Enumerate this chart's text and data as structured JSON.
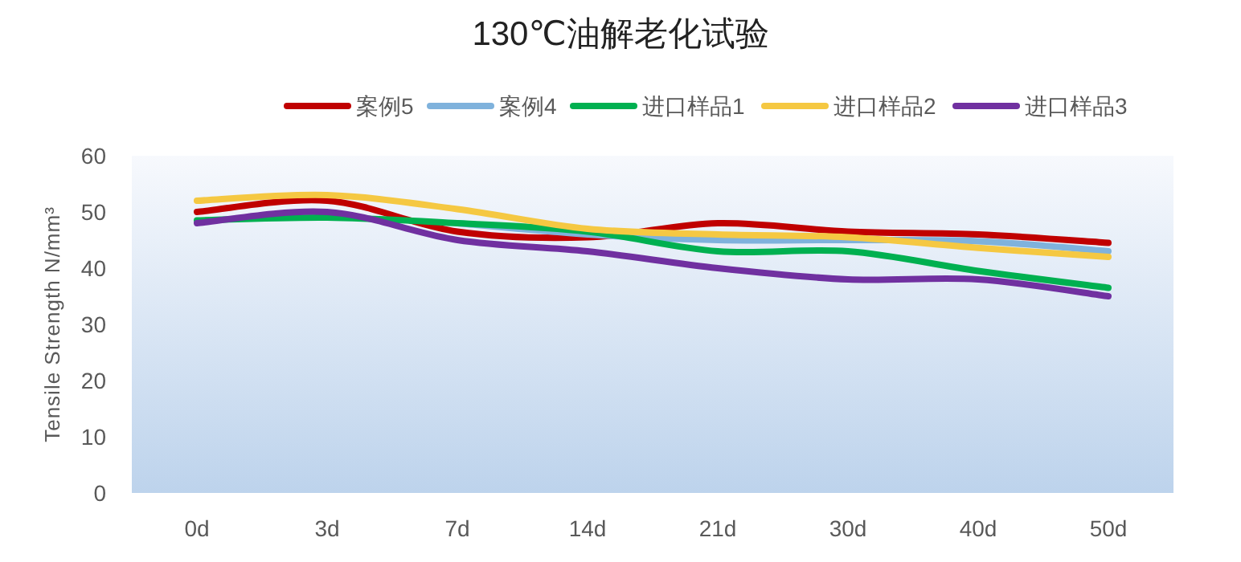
{
  "chart_data": {
    "type": "line",
    "title": "130℃油解老化试验",
    "ylabel": "Tensile Strength N/mm³",
    "categories": [
      "0d",
      "3d",
      "7d",
      "14d",
      "21d",
      "30d",
      "40d",
      "50d"
    ],
    "series": [
      {
        "name": "案例5",
        "color": "#c00000",
        "values": [
          50,
          52,
          46.5,
          45.5,
          48,
          46.5,
          46,
          44.5
        ]
      },
      {
        "name": "案例4",
        "color": "#7fb2dc",
        "values": [
          null,
          null,
          48,
          46,
          45,
          45,
          44.8,
          43
        ]
      },
      {
        "name": "进口样品1",
        "color": "#00b050",
        "values": [
          48.5,
          49,
          48,
          46.5,
          43,
          43,
          39.5,
          36.5
        ]
      },
      {
        "name": "进口样品2",
        "color": "#f5c842",
        "values": [
          52,
          53,
          50.5,
          47,
          46,
          45.5,
          43.6,
          42
        ]
      },
      {
        "name": "进口样品3",
        "color": "#7030a0",
        "values": [
          48,
          50,
          45,
          43,
          40,
          38,
          38,
          35
        ]
      }
    ],
    "ylim": [
      0,
      60
    ],
    "yticks": [
      0,
      10,
      20,
      30,
      40,
      50,
      60
    ],
    "legend": "top"
  }
}
